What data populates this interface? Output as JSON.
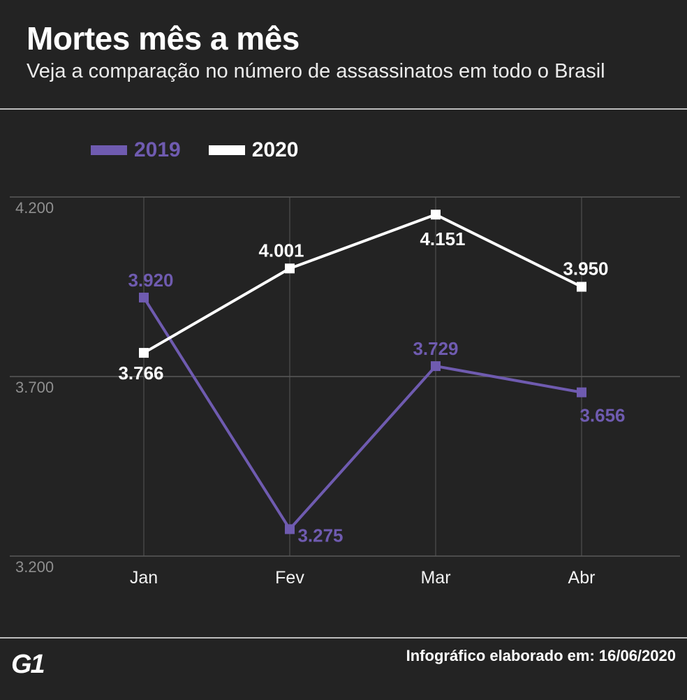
{
  "header": {
    "title": "Mortes mês a mês",
    "subtitle": "Veja a comparação no número de assassinatos em todo o Brasil"
  },
  "footer": {
    "logo": "G1",
    "note": "Infográfico elaborado em: 16/06/2020"
  },
  "colors": {
    "background": "#232323",
    "series_2019": "#6f5bb0",
    "series_2020": "#ffffff",
    "grid": "#5a5a5a",
    "tick": "#8f8f8f"
  },
  "chart_data": {
    "type": "line",
    "categories": [
      "Jan",
      "Fev",
      "Mar",
      "Abr"
    ],
    "ylim": [
      3200,
      4200
    ],
    "yticks": [
      3200,
      3700,
      4200
    ],
    "ytick_labels": [
      "3.200",
      "3.700",
      "4.200"
    ],
    "grid": true,
    "legend_position": "top-left",
    "series": [
      {
        "name": "2019",
        "color": "#6f5bb0",
        "values": [
          3920,
          3275,
          3729,
          3656
        ],
        "labels": [
          "3.920",
          "3.275",
          "3.729",
          "3.656"
        ]
      },
      {
        "name": "2020",
        "color": "#ffffff",
        "values": [
          3766,
          4001,
          4151,
          3950
        ],
        "labels": [
          "3.766",
          "4.001",
          "4.151",
          "3.950"
        ]
      }
    ]
  }
}
